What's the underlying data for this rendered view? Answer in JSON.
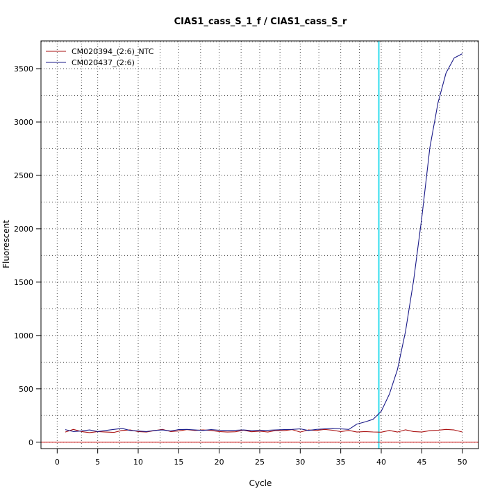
{
  "chart_data": {
    "type": "line",
    "title": "CIAS1_cass_S_1_f / CIAS1_cass_S_r",
    "xlabel": "Cycle",
    "ylabel": "Fluorescent",
    "xlim": [
      -2,
      52
    ],
    "ylim": [
      -60,
      3760
    ],
    "x_ticks": [
      0,
      5,
      10,
      15,
      20,
      25,
      30,
      35,
      40,
      45,
      50
    ],
    "y_ticks": [
      0,
      500,
      1000,
      1500,
      2000,
      2500,
      3000,
      3500
    ],
    "grid": true,
    "legend_position": "top-left",
    "threshold_y": 0,
    "threshold_color": "#cc0000",
    "marker_x": 39.7,
    "marker_color": "#33ddee",
    "vertical_gridlines": [
      3,
      7.7,
      12.7,
      17.7,
      22.7,
      27.5,
      32.3,
      37.3,
      42.3,
      47.2
    ],
    "horizontal_gridlines": [
      250,
      750,
      1250,
      1750,
      2250,
      2750,
      3250,
      3750
    ],
    "x": [
      1,
      2,
      3,
      4,
      5,
      6,
      7,
      8,
      9,
      10,
      11,
      12,
      13,
      14,
      15,
      16,
      17,
      18,
      19,
      20,
      21,
      22,
      23,
      24,
      25,
      26,
      27,
      28,
      29,
      30,
      31,
      32,
      33,
      34,
      35,
      36,
      37,
      38,
      39,
      40,
      41,
      42,
      43,
      44,
      45,
      46,
      47,
      48,
      49,
      50
    ],
    "series": [
      {
        "name": "CM020394_(2:6)_NTC",
        "color": "#aa1111",
        "values": [
          95,
          120,
          100,
          90,
          100,
          95,
          92,
          110,
          115,
          100,
          95,
          108,
          120,
          100,
          105,
          118,
          110,
          115,
          110,
          100,
          95,
          98,
          112,
          98,
          104,
          95,
          110,
          108,
          118,
          95,
          115,
          110,
          120,
          112,
          100,
          110,
          95,
          100,
          96,
          94,
          110,
          95,
          116,
          100,
          95,
          108,
          112,
          120,
          115,
          96
        ]
      },
      {
        "name": "CM020437_(2:6)",
        "color": "#1a1a88",
        "values": [
          118,
          100,
          105,
          115,
          100,
          110,
          120,
          130,
          110,
          105,
          100,
          110,
          115,
          105,
          118,
          120,
          115,
          110,
          118,
          112,
          110,
          112,
          115,
          108,
          110,
          112,
          115,
          118,
          120,
          125,
          110,
          120,
          125,
          130,
          125,
          120,
          170,
          190,
          215,
          290,
          450,
          680,
          1040,
          1520,
          2100,
          2760,
          3180,
          3460,
          3600,
          3640
        ]
      }
    ]
  }
}
